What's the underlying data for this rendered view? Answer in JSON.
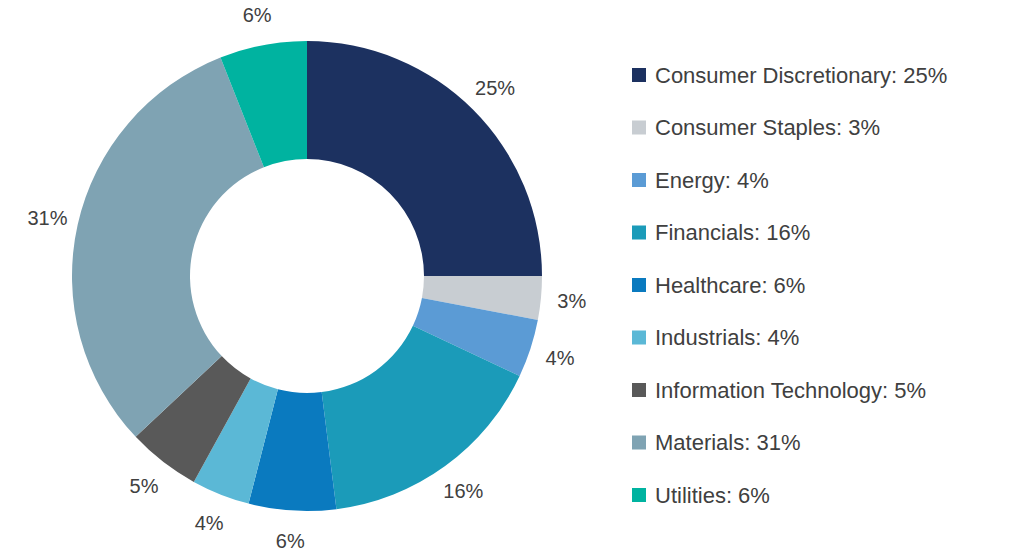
{
  "chart_data": {
    "type": "pie",
    "categories": [
      "Consumer Discretionary: 25%",
      "Consumer Staples: 3%",
      "Energy: 4%",
      "Financials: 16%",
      "Healthcare: 6%",
      "Industrials: 4%",
      "Information Technology: 5%",
      "Materials: 31%",
      "Utilities: 6%"
    ],
    "values": [
      25,
      3,
      4,
      16,
      6,
      4,
      5,
      31,
      6
    ],
    "value_labels": [
      "25%",
      "3%",
      "4%",
      "16%",
      "6%",
      "4%",
      "5%",
      "31%",
      "6%"
    ],
    "colors": [
      "#1c3160",
      "#c8cdd2",
      "#5b9bd5",
      "#1b9bb9",
      "#0a7abf",
      "#5bb8d6",
      "#595959",
      "#7fa3b3",
      "#00b3a0"
    ],
    "data_labels": true,
    "legend": "right"
  }
}
